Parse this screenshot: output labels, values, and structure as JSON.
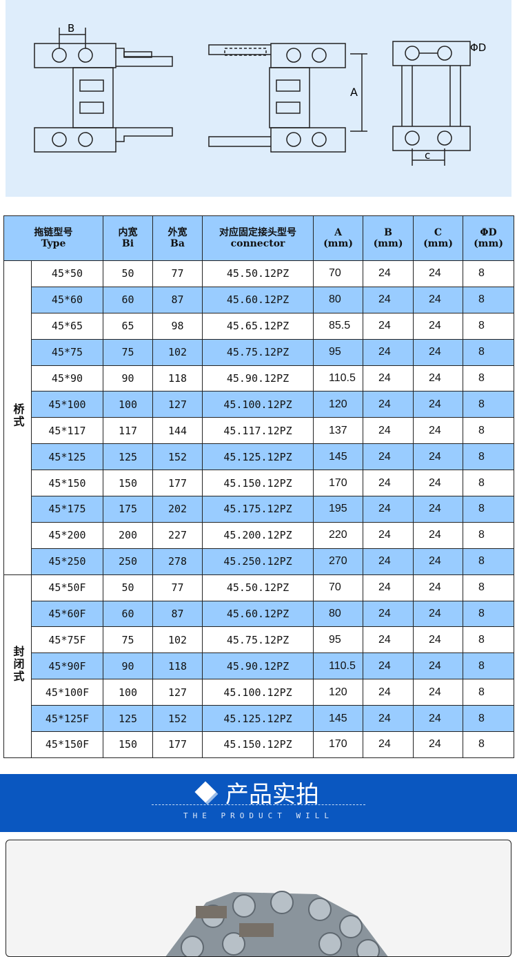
{
  "diagram": {
    "labels": {
      "b": "B",
      "a": "A",
      "d": "ΦD",
      "c": "c"
    }
  },
  "table": {
    "headers": [
      {
        "cn": "拖链型号",
        "en": "Type"
      },
      {
        "cn": "内宽",
        "en": "Bi"
      },
      {
        "cn": "外宽",
        "en": "Ba"
      },
      {
        "cn": "对应固定接头型号",
        "en": "connector"
      },
      {
        "cn": "A",
        "en": "(mm)"
      },
      {
        "cn": "B",
        "en": "(mm)"
      },
      {
        "cn": "C",
        "en": "(mm)"
      },
      {
        "cn": "ΦD",
        "en": "(mm)"
      }
    ],
    "groups": [
      {
        "label": "桥式",
        "rows": [
          [
            "45*50",
            "50",
            "77",
            "45.50.12PZ",
            "70",
            "24",
            "24",
            "8"
          ],
          [
            "45*60",
            "60",
            "87",
            "45.60.12PZ",
            "80",
            "24",
            "24",
            "8"
          ],
          [
            "45*65",
            "65",
            "98",
            "45.65.12PZ",
            "85.5",
            "24",
            "24",
            "8"
          ],
          [
            "45*75",
            "75",
            "102",
            "45.75.12PZ",
            "95",
            "24",
            "24",
            "8"
          ],
          [
            "45*90",
            "90",
            "118",
            "45.90.12PZ",
            "110.5",
            "24",
            "24",
            "8"
          ],
          [
            "45*100",
            "100",
            "127",
            "45.100.12PZ",
            "120",
            "24",
            "24",
            "8"
          ],
          [
            "45*117",
            "117",
            "144",
            "45.117.12PZ",
            "137",
            "24",
            "24",
            "8"
          ],
          [
            "45*125",
            "125",
            "152",
            "45.125.12PZ",
            "145",
            "24",
            "24",
            "8"
          ],
          [
            "45*150",
            "150",
            "177",
            "45.150.12PZ",
            "170",
            "24",
            "24",
            "8"
          ],
          [
            "45*175",
            "175",
            "202",
            "45.175.12PZ",
            "195",
            "24",
            "24",
            "8"
          ],
          [
            "45*200",
            "200",
            "227",
            "45.200.12PZ",
            "220",
            "24",
            "24",
            "8"
          ],
          [
            "45*250",
            "250",
            "278",
            "45.250.12PZ",
            "270",
            "24",
            "24",
            "8"
          ]
        ]
      },
      {
        "label": "封闭式",
        "rows": [
          [
            "45*50F",
            "50",
            "77",
            "45.50.12PZ",
            "70",
            "24",
            "24",
            "8"
          ],
          [
            "45*60F",
            "60",
            "87",
            "45.60.12PZ",
            "80",
            "24",
            "24",
            "8"
          ],
          [
            "45*75F",
            "75",
            "102",
            "45.75.12PZ",
            "95",
            "24",
            "24",
            "8"
          ],
          [
            "45*90F",
            "90",
            "118",
            "45.90.12PZ",
            "110.5",
            "24",
            "24",
            "8"
          ],
          [
            "45*100F",
            "100",
            "127",
            "45.100.12PZ",
            "120",
            "24",
            "24",
            "8"
          ],
          [
            "45*125F",
            "125",
            "152",
            "45.125.12PZ",
            "145",
            "24",
            "24",
            "8"
          ],
          [
            "45*150F",
            "150",
            "177",
            "45.150.12PZ",
            "170",
            "24",
            "24",
            "8"
          ]
        ]
      }
    ]
  },
  "banner": {
    "title": "产品实拍",
    "subtitle": "THE PRODUCT WILL",
    "color": "#0a57c0"
  },
  "colors": {
    "row_alt": "#99ccff",
    "diagram_bg": "#deedfb"
  }
}
